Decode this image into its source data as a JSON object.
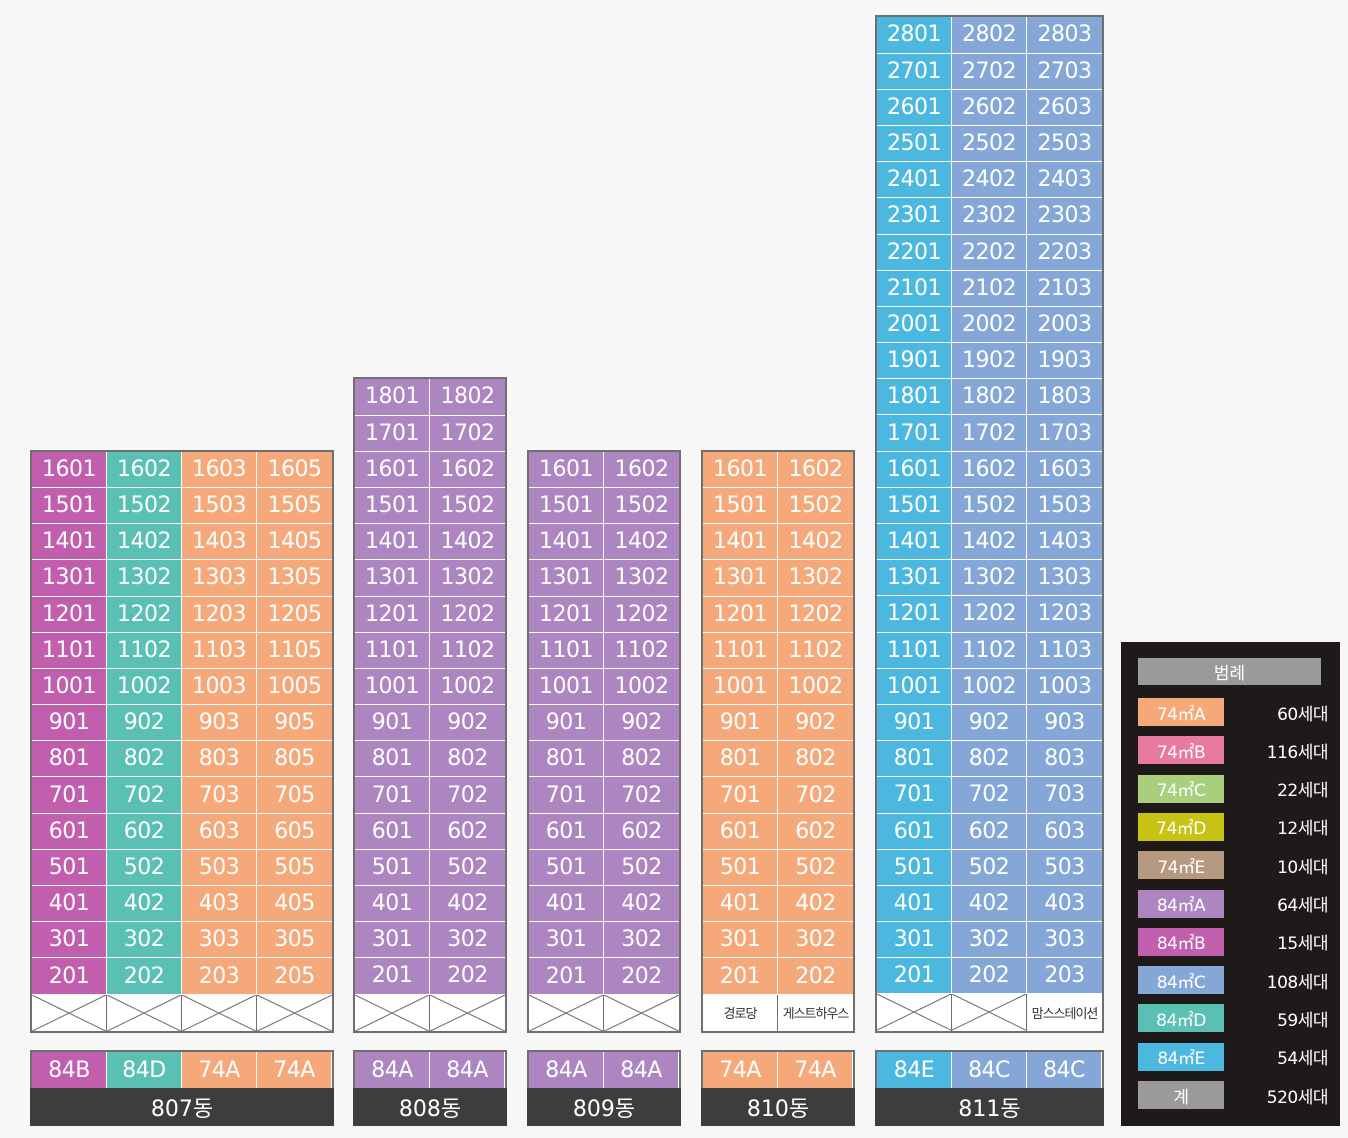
{
  "colors": {
    "74A": "#f5a97a",
    "74B": "#e8799f",
    "74C": "#a7cf7e",
    "74D": "#c6c314",
    "74E": "#b69a7f",
    "84A": "#ad85c1",
    "84B": "#c25eae",
    "84C": "#84a7d7",
    "84D": "#5bc0b4",
    "84E": "#4cb8df",
    "total": "#9a9a9a"
  },
  "buildings": [
    {
      "name": "807동",
      "top_floor": 16,
      "lines": [
        {
          "unit": "01",
          "type": "84B",
          "color_key": "84B"
        },
        {
          "unit": "02",
          "type": "84D",
          "color_key": "84D"
        },
        {
          "unit": "03",
          "type": "74A",
          "color_key": "74A"
        },
        {
          "unit": "05",
          "type": "74A",
          "color_key": "74A"
        }
      ],
      "ground": [
        "",
        "",
        "",
        ""
      ]
    },
    {
      "name": "808동",
      "top_floor": 18,
      "lines": [
        {
          "unit": "01",
          "type": "84A",
          "color_key": "84A"
        },
        {
          "unit": "02",
          "type": "84A",
          "color_key": "84A"
        }
      ],
      "ground": [
        "",
        ""
      ]
    },
    {
      "name": "809동",
      "top_floor": 16,
      "lines": [
        {
          "unit": "01",
          "type": "84A",
          "color_key": "84A"
        },
        {
          "unit": "02",
          "type": "84A",
          "color_key": "84A"
        }
      ],
      "ground": [
        "",
        ""
      ]
    },
    {
      "name": "810동",
      "top_floor": 16,
      "lines": [
        {
          "unit": "01",
          "type": "74A",
          "color_key": "74A"
        },
        {
          "unit": "02",
          "type": "74A",
          "color_key": "74A"
        }
      ],
      "ground": [
        "경로당",
        "게스트하우스"
      ]
    },
    {
      "name": "811동",
      "top_floor": 28,
      "lines": [
        {
          "unit": "01",
          "type": "84E",
          "color_key": "84E"
        },
        {
          "unit": "02",
          "type": "84C",
          "color_key": "84C"
        },
        {
          "unit": "03",
          "type": "84C",
          "color_key": "84C"
        }
      ],
      "ground": [
        "",
        "",
        "맘스스테이션"
      ]
    }
  ],
  "legend": {
    "title": "범례",
    "items": [
      {
        "label": "74㎡A",
        "count": "60세대",
        "color_key": "74A"
      },
      {
        "label": "74㎡B",
        "count": "116세대",
        "color_key": "74B"
      },
      {
        "label": "74㎡C",
        "count": "22세대",
        "color_key": "74C"
      },
      {
        "label": "74㎡D",
        "count": "12세대",
        "color_key": "74D"
      },
      {
        "label": "74㎡E",
        "count": "10세대",
        "color_key": "74E"
      },
      {
        "label": "84㎡A",
        "count": "64세대",
        "color_key": "84A"
      },
      {
        "label": "84㎡B",
        "count": "15세대",
        "color_key": "84B"
      },
      {
        "label": "84㎡C",
        "count": "108세대",
        "color_key": "84C"
      },
      {
        "label": "84㎡D",
        "count": "59세대",
        "color_key": "84D"
      },
      {
        "label": "84㎡E",
        "count": "54세대",
        "color_key": "84E"
      },
      {
        "label": "계",
        "count": "520세대",
        "color_key": "total"
      }
    ]
  }
}
